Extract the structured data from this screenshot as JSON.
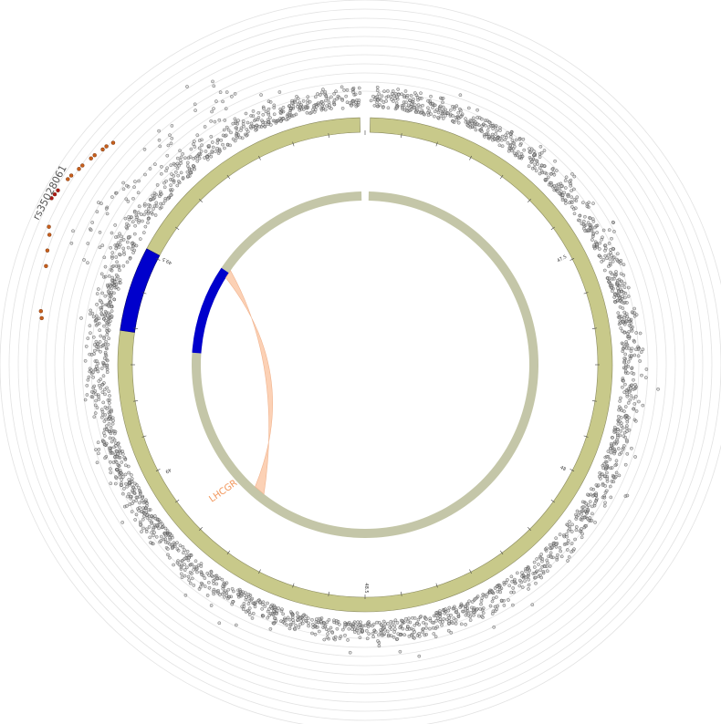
{
  "chart_data": {
    "type": "scatter",
    "title": "",
    "subtitle": "",
    "tick_labels": [
      "47.5",
      "48",
      "48.5",
      "49",
      "49.5"
    ],
    "annotations": {
      "snp_label": "rs35028061",
      "gene_label": "LHCGR"
    },
    "tracks": {
      "outer_ring": {
        "color": "#c8c98a",
        "highlight_color": "#0000cc"
      },
      "inner_ring": {
        "color": "#c4c6a8",
        "highlight_color": "#0000cc"
      },
      "link": {
        "color": "#fcc9a8",
        "label_color": "#f2965a"
      }
    },
    "significant_points": [
      {
        "angle": -62.0,
        "value": 0.89,
        "label": "rs35028061"
      },
      {
        "angle": -61.2,
        "value": 0.88
      },
      {
        "angle": -60.4,
        "value": 0.87
      },
      {
        "angle": -58.0,
        "value": 0.84
      },
      {
        "angle": -57.2,
        "value": 0.83
      },
      {
        "angle": -55.6,
        "value": 0.8
      },
      {
        "angle": -54.8,
        "value": 0.79
      },
      {
        "angle": -53.0,
        "value": 0.76
      },
      {
        "angle": -52.2,
        "value": 0.75
      },
      {
        "angle": -50.6,
        "value": 0.72
      },
      {
        "angle": -49.8,
        "value": 0.71
      },
      {
        "angle": -48.6,
        "value": 0.68
      },
      {
        "angle": -66.4,
        "value": 0.78
      },
      {
        "angle": -67.6,
        "value": 0.74
      },
      {
        "angle": -70.2,
        "value": 0.7
      },
      {
        "angle": -72.8,
        "value": 0.66
      },
      {
        "angle": -80.6,
        "value": 0.6
      },
      {
        "angle": -81.8,
        "value": 0.58
      }
    ]
  }
}
